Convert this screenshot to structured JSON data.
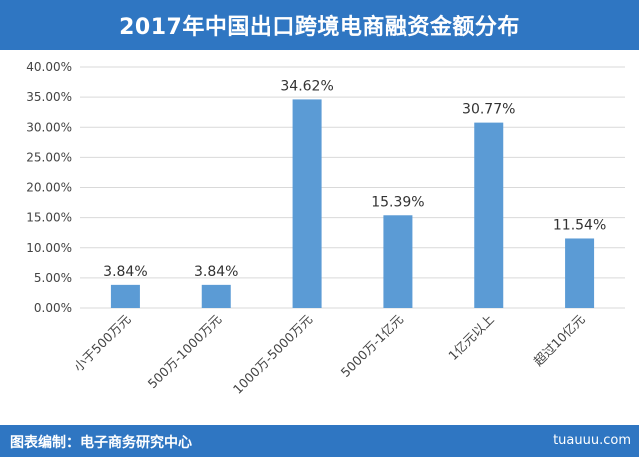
{
  "header": {
    "title": "2017年中国出口跨境电商融资金额分布"
  },
  "footer": {
    "source": "图表编制：电子商务研究中心",
    "watermark": "tuauuu.com"
  },
  "colors": {
    "bar": "#5b9bd5",
    "header": "#2f76c2",
    "grid": "#d9d9d9"
  },
  "chart_data": {
    "type": "bar",
    "title": "2017年中国出口跨境电商融资金额分布",
    "categories": [
      "小于500万元",
      "500万-1000万元",
      "1000万-5000万元",
      "5000万-1亿元",
      "1亿元以上",
      "超过10亿元"
    ],
    "values": [
      3.84,
      3.84,
      34.62,
      15.39,
      30.77,
      11.54
    ],
    "value_labels": [
      "3.84%",
      "3.84%",
      "34.62%",
      "15.39%",
      "30.77%",
      "11.54%"
    ],
    "y_ticks": [
      "0.00%",
      "5.00%",
      "10.00%",
      "15.00%",
      "20.00%",
      "25.00%",
      "30.00%",
      "35.00%",
      "40.00%"
    ],
    "ylim": [
      0,
      40
    ],
    "grid": true,
    "xlabel": "",
    "ylabel": ""
  }
}
